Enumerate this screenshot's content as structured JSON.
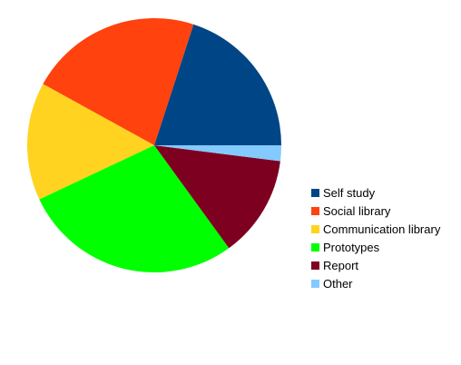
{
  "chart_data": {
    "type": "pie",
    "title": "",
    "slices": [
      {
        "label": "Self study",
        "value": 20,
        "color": "#004586"
      },
      {
        "label": "Social library",
        "value": 22,
        "color": "#ff420e"
      },
      {
        "label": "Communication library",
        "value": 15,
        "color": "#ffd320"
      },
      {
        "label": "Prototypes",
        "value": 28,
        "color": "#00ff00"
      },
      {
        "label": "Report",
        "value": 13,
        "color": "#7e0021"
      },
      {
        "label": "Other",
        "value": 2,
        "color": "#83caff"
      }
    ],
    "legend_position": "right"
  }
}
